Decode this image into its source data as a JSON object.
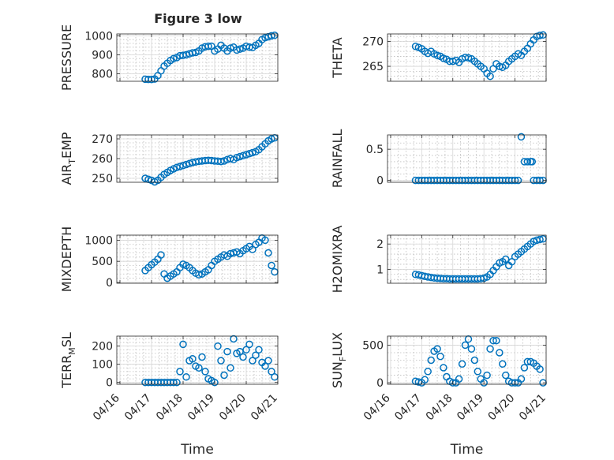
{
  "figure_title": "Figure 3 low",
  "chart_data": [
    {
      "type": "scatter",
      "title": "Figure 3 low",
      "ylabel": "PRESSURE",
      "ylabel_sub": "",
      "ylim": [
        760,
        1010
      ],
      "yticks": [
        800,
        900,
        1000
      ],
      "xlim": [
        -0.1,
        5.0
      ],
      "grid": true,
      "x": [
        0.8,
        0.9,
        1.0,
        1.1,
        1.2,
        1.3,
        1.4,
        1.5,
        1.6,
        1.7,
        1.8,
        1.9,
        2.0,
        2.1,
        2.2,
        2.3,
        2.4,
        2.5,
        2.6,
        2.7,
        2.8,
        2.9,
        3.0,
        3.1,
        3.2,
        3.3,
        3.4,
        3.5,
        3.6,
        3.7,
        3.8,
        3.9,
        4.0,
        4.1,
        4.2,
        4.3,
        4.4,
        4.5,
        4.6,
        4.7,
        4.8,
        4.9
      ],
      "y": [
        771,
        770,
        769,
        772,
        790,
        815,
        840,
        855,
        870,
        880,
        885,
        895,
        897,
        900,
        905,
        910,
        912,
        920,
        935,
        942,
        945,
        945,
        920,
        930,
        950,
        935,
        920,
        935,
        940,
        925,
        930,
        935,
        945,
        940,
        938,
        950,
        960,
        980,
        990,
        995,
        1000,
        1003
      ]
    },
    {
      "type": "scatter",
      "ylabel": "THETA",
      "ylabel_sub": "",
      "ylim": [
        262,
        271.5
      ],
      "yticks": [
        265,
        270
      ],
      "xlim": [
        -0.1,
        5.0
      ],
      "grid": true,
      "x": [
        0.8,
        0.9,
        1.0,
        1.1,
        1.2,
        1.3,
        1.4,
        1.5,
        1.6,
        1.7,
        1.8,
        1.9,
        2.0,
        2.1,
        2.2,
        2.3,
        2.4,
        2.5,
        2.6,
        2.7,
        2.8,
        2.9,
        3.0,
        3.1,
        3.2,
        3.3,
        3.4,
        3.5,
        3.6,
        3.7,
        3.8,
        3.9,
        4.0,
        4.1,
        4.2,
        4.3,
        4.4,
        4.5,
        4.6,
        4.7,
        4.8,
        4.9
      ],
      "y": [
        269,
        268.8,
        268.5,
        268,
        267.6,
        268,
        267.5,
        267.2,
        267,
        266.6,
        266.4,
        266,
        266,
        266.2,
        265.8,
        266.5,
        266.8,
        266.7,
        266.5,
        266,
        265.5,
        265,
        264.5,
        263.6,
        263,
        264.5,
        265.5,
        265,
        264.8,
        265.2,
        266,
        266.5,
        267,
        267.5,
        267.2,
        268,
        268.6,
        269.5,
        270.3,
        271,
        271.2,
        271.3
      ]
    },
    {
      "type": "scatter",
      "ylabel": "AIR",
      "ylabel_sub": "T",
      "ylabel_after": "EMP",
      "ylim": [
        248,
        272
      ],
      "yticks": [
        250,
        260,
        270
      ],
      "xlim": [
        -0.1,
        5.0
      ],
      "grid": true,
      "x": [
        0.8,
        0.9,
        1.0,
        1.1,
        1.2,
        1.3,
        1.4,
        1.5,
        1.6,
        1.7,
        1.8,
        1.9,
        2.0,
        2.1,
        2.2,
        2.3,
        2.4,
        2.5,
        2.6,
        2.7,
        2.8,
        2.9,
        3.0,
        3.1,
        3.2,
        3.3,
        3.4,
        3.5,
        3.6,
        3.7,
        3.8,
        3.9,
        4.0,
        4.1,
        4.2,
        4.3,
        4.4,
        4.5,
        4.6,
        4.7,
        4.8,
        4.9
      ],
      "y": [
        250,
        249.5,
        249,
        248.2,
        249,
        250.5,
        252,
        253,
        254,
        254.8,
        255.5,
        256,
        256.5,
        257,
        257.5,
        258,
        258.3,
        258.6,
        258.8,
        259,
        259.1,
        259,
        258.8,
        258.7,
        258.5,
        258.8,
        259.5,
        260,
        259.5,
        260.5,
        261,
        261.5,
        262,
        262.5,
        263,
        263.5,
        264.5,
        266,
        267.5,
        269,
        270,
        270.5
      ]
    },
    {
      "type": "scatter",
      "ylabel": "RAINFALL",
      "ylabel_sub": "",
      "ylim": [
        -0.03,
        0.73
      ],
      "yticks": [
        0,
        0.5
      ],
      "xlim": [
        -0.1,
        5.0
      ],
      "grid": true,
      "x": [
        0.8,
        0.9,
        1.0,
        1.1,
        1.2,
        1.3,
        1.4,
        1.5,
        1.6,
        1.7,
        1.8,
        1.9,
        2.0,
        2.1,
        2.2,
        2.3,
        2.4,
        2.5,
        2.6,
        2.7,
        2.8,
        2.9,
        3.0,
        3.1,
        3.2,
        3.3,
        3.4,
        3.5,
        3.6,
        3.7,
        3.8,
        3.9,
        4.0,
        4.1,
        4.2,
        4.3,
        4.4,
        4.5,
        4.55,
        4.6,
        4.7,
        4.8,
        4.9
      ],
      "y": [
        0,
        0,
        0,
        0,
        0,
        0,
        0,
        0,
        0,
        0,
        0,
        0,
        0,
        0,
        0,
        0,
        0,
        0,
        0,
        0,
        0,
        0,
        0,
        0,
        0,
        0,
        0,
        0,
        0,
        0,
        0,
        0,
        0,
        0,
        0.7,
        0.3,
        0.3,
        0.3,
        0.3,
        0,
        0,
        0,
        0
      ]
    },
    {
      "type": "scatter",
      "ylabel": "MIXDEPTH",
      "ylabel_sub": "",
      "ylim": [
        -20,
        1120
      ],
      "yticks": [
        0,
        500,
        1000
      ],
      "xlim": [
        -0.1,
        5.0
      ],
      "grid": true,
      "x": [
        0.8,
        0.9,
        1.0,
        1.1,
        1.2,
        1.3,
        1.4,
        1.5,
        1.6,
        1.7,
        1.8,
        1.9,
        2.0,
        2.1,
        2.2,
        2.3,
        2.4,
        2.5,
        2.6,
        2.7,
        2.8,
        2.9,
        3.0,
        3.1,
        3.2,
        3.3,
        3.4,
        3.5,
        3.6,
        3.7,
        3.8,
        3.9,
        4.0,
        4.1,
        4.2,
        4.3,
        4.4,
        4.5,
        4.6,
        4.7,
        4.8,
        4.9
      ],
      "y": [
        280,
        350,
        420,
        480,
        550,
        650,
        200,
        100,
        150,
        200,
        250,
        350,
        430,
        400,
        350,
        280,
        220,
        180,
        200,
        250,
        300,
        400,
        500,
        550,
        600,
        650,
        620,
        680,
        700,
        720,
        680,
        750,
        800,
        850,
        780,
        900,
        950,
        1050,
        1000,
        700,
        400,
        250
      ]
    },
    {
      "type": "scatter",
      "ylabel": "H2OMIXRA",
      "ylabel_sub": "",
      "ylim": [
        0.45,
        2.35
      ],
      "yticks": [
        1,
        2
      ],
      "xlim": [
        -0.1,
        5.0
      ],
      "grid": true,
      "x": [
        0.8,
        0.9,
        1.0,
        1.1,
        1.2,
        1.3,
        1.4,
        1.5,
        1.6,
        1.7,
        1.8,
        1.9,
        2.0,
        2.1,
        2.2,
        2.3,
        2.4,
        2.5,
        2.6,
        2.7,
        2.8,
        2.9,
        3.0,
        3.1,
        3.2,
        3.3,
        3.4,
        3.5,
        3.6,
        3.7,
        3.8,
        3.9,
        4.0,
        4.1,
        4.2,
        4.3,
        4.4,
        4.5,
        4.6,
        4.7,
        4.8,
        4.9
      ],
      "y": [
        0.8,
        0.78,
        0.75,
        0.72,
        0.7,
        0.68,
        0.66,
        0.65,
        0.64,
        0.63,
        0.63,
        0.62,
        0.62,
        0.62,
        0.62,
        0.62,
        0.62,
        0.62,
        0.62,
        0.62,
        0.62,
        0.63,
        0.65,
        0.7,
        0.8,
        0.95,
        1.1,
        1.25,
        1.3,
        1.4,
        1.15,
        1.3,
        1.5,
        1.6,
        1.7,
        1.8,
        1.9,
        2.0,
        2.1,
        2.15,
        2.18,
        2.2
      ]
    },
    {
      "type": "scatter",
      "ylabel": "TERR",
      "ylabel_sub": "M",
      "ylabel_after": "SL",
      "ylim": [
        -10,
        255
      ],
      "yticks": [
        0,
        100,
        200
      ],
      "xlim": [
        -0.1,
        5.0
      ],
      "grid": true,
      "x": [
        0.8,
        0.9,
        1.0,
        1.1,
        1.2,
        1.3,
        1.4,
        1.5,
        1.6,
        1.7,
        1.8,
        1.9,
        2.0,
        2.1,
        2.2,
        2.3,
        2.4,
        2.5,
        2.6,
        2.7,
        2.8,
        2.9,
        3.0,
        3.1,
        3.2,
        3.3,
        3.4,
        3.5,
        3.6,
        3.7,
        3.8,
        3.9,
        4.0,
        4.1,
        4.2,
        4.3,
        4.4,
        4.5,
        4.6,
        4.7,
        4.8,
        4.9
      ],
      "y": [
        0,
        0,
        0,
        0,
        0,
        0,
        0,
        0,
        0,
        0,
        0,
        60,
        210,
        30,
        120,
        130,
        90,
        80,
        140,
        60,
        20,
        10,
        0,
        200,
        120,
        40,
        170,
        80,
        240,
        160,
        170,
        140,
        180,
        210,
        120,
        150,
        180,
        110,
        90,
        120,
        60,
        30
      ]
    },
    {
      "type": "scatter",
      "ylabel": "SUN",
      "ylabel_sub": "F",
      "ylabel_after": "LUX",
      "ylim": [
        -20,
        620
      ],
      "yticks": [
        0,
        500
      ],
      "xlim": [
        -0.1,
        5.0
      ],
      "grid": true,
      "x": [
        0.8,
        0.9,
        1.0,
        1.1,
        1.2,
        1.3,
        1.4,
        1.5,
        1.6,
        1.7,
        1.8,
        1.9,
        2.0,
        2.1,
        2.2,
        2.3,
        2.4,
        2.5,
        2.6,
        2.7,
        2.8,
        2.9,
        3.0,
        3.1,
        3.2,
        3.3,
        3.4,
        3.5,
        3.6,
        3.7,
        3.8,
        3.9,
        4.0,
        4.1,
        4.2,
        4.3,
        4.4,
        4.5,
        4.6,
        4.7,
        4.8,
        4.9
      ],
      "y": [
        20,
        10,
        0,
        40,
        150,
        300,
        420,
        450,
        350,
        200,
        80,
        20,
        0,
        0,
        50,
        250,
        500,
        580,
        450,
        300,
        150,
        50,
        0,
        100,
        450,
        560,
        560,
        400,
        250,
        100,
        20,
        0,
        0,
        0,
        50,
        200,
        280,
        280,
        260,
        220,
        180,
        0
      ]
    }
  ],
  "x_tick_labels": [
    "04/16",
    "04/17",
    "04/18",
    "04/19",
    "04/20",
    "04/21"
  ],
  "x_label": "Time"
}
